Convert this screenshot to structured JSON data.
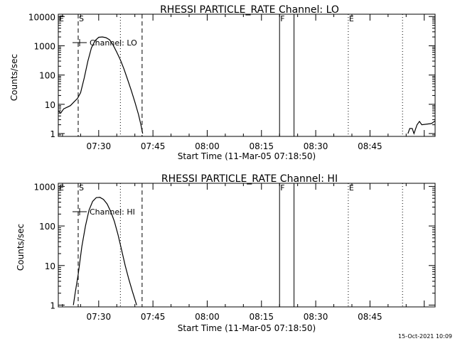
{
  "footer_timestamp": "15-Oct-2021 10:09",
  "chart_data": [
    {
      "type": "line",
      "title": "RHESSI PARTICLE_RATE Channel: LO",
      "xlabel": "Start Time (11-Mar-05 07:18:50)",
      "ylabel": "Counts/sec",
      "y_scale": "log",
      "ylim": [
        0.8,
        12000
      ],
      "xlim": [
        "07:18:50",
        "09:03:00"
      ],
      "x_ticks": [
        "07:30",
        "07:45",
        "08:00",
        "08:15",
        "08:30",
        "08:45"
      ],
      "y_ticks": [
        "1",
        "10",
        "100",
        "1000",
        "10000"
      ],
      "legend": {
        "label": "Channel: LO",
        "placement": "top-left"
      },
      "markers": [
        {
          "label": "E",
          "time": "07:18:50",
          "style": "dotted"
        },
        {
          "label": "S",
          "time": "07:24:20",
          "style": "dashed"
        },
        {
          "label": "",
          "time": "07:36:00",
          "style": "dotted"
        },
        {
          "label": "",
          "time": "07:42:00",
          "style": "dashed"
        },
        {
          "label": "F",
          "time": "08:20:00",
          "style": "solid"
        },
        {
          "label": "",
          "time": "08:24:00",
          "style": "solid"
        },
        {
          "label": "E",
          "time": "08:39:00",
          "style": "dotted"
        },
        {
          "label": "",
          "time": "08:54:00",
          "style": "dotted"
        }
      ],
      "series": [
        {
          "name": "Channel: LO",
          "segments": [
            [
              [
                "07:18:50",
                6
              ],
              [
                "07:19:30",
                5
              ],
              [
                "07:20:20",
                7
              ],
              [
                "07:21:20",
                8
              ],
              [
                "07:22:10",
                9
              ],
              [
                "07:23:10",
                12
              ],
              [
                "07:24:10",
                16
              ],
              [
                "07:25:00",
                25
              ],
              [
                "07:26:00",
                80
              ],
              [
                "07:27:00",
                300
              ],
              [
                "07:28:00",
                850
              ],
              [
                "07:29:00",
                1500
              ],
              [
                "07:30:00",
                1950
              ],
              [
                "07:31:00",
                2000
              ],
              [
                "07:32:00",
                1900
              ],
              [
                "07:33:00",
                1600
              ],
              [
                "07:34:00",
                1050
              ],
              [
                "07:35:00",
                600
              ],
              [
                "07:36:00",
                330
              ],
              [
                "07:37:00",
                160
              ],
              [
                "07:38:00",
                70
              ],
              [
                "07:39:00",
                30
              ],
              [
                "07:40:00",
                12
              ],
              [
                "07:41:00",
                4.5
              ],
              [
                "07:41:40",
                2
              ],
              [
                "07:42:10",
                1
              ]
            ],
            [
              [
                "08:55:30",
                1
              ],
              [
                "08:56:00",
                1.5
              ],
              [
                "08:56:40",
                1.5
              ],
              [
                "08:57:10",
                1
              ],
              [
                "08:58:00",
                2
              ],
              [
                "08:58:40",
                2.6
              ],
              [
                "08:59:20",
                2
              ],
              [
                "09:02:00",
                2.2
              ],
              [
                "09:03:00",
                2.7
              ]
            ]
          ]
        }
      ]
    },
    {
      "type": "line",
      "title": "RHESSI PARTICLE_RATE Channel: HI",
      "xlabel": "Start Time (11-Mar-05 07:18:50)",
      "ylabel": "Counts/sec",
      "y_scale": "log",
      "ylim": [
        0.9,
        1200
      ],
      "xlim": [
        "07:18:50",
        "09:03:00"
      ],
      "x_ticks": [
        "07:30",
        "07:45",
        "08:00",
        "08:15",
        "08:30",
        "08:45"
      ],
      "y_ticks": [
        "1",
        "10",
        "100",
        "1000"
      ],
      "legend": {
        "label": "Channel: HI",
        "placement": "top-left"
      },
      "markers": [
        {
          "label": "E",
          "time": "07:18:50",
          "style": "dotted"
        },
        {
          "label": "S",
          "time": "07:24:20",
          "style": "dashed"
        },
        {
          "label": "",
          "time": "07:36:00",
          "style": "dotted"
        },
        {
          "label": "",
          "time": "07:42:00",
          "style": "dashed"
        },
        {
          "label": "F",
          "time": "08:20:00",
          "style": "solid"
        },
        {
          "label": "",
          "time": "08:24:00",
          "style": "solid"
        },
        {
          "label": "E",
          "time": "08:39:00",
          "style": "dotted"
        },
        {
          "label": "",
          "time": "08:54:00",
          "style": "dotted"
        }
      ],
      "series": [
        {
          "name": "Channel: HI",
          "segments": [
            [
              [
                "07:23:00",
                1
              ],
              [
                "07:23:30",
                2
              ],
              [
                "07:24:20",
                6
              ],
              [
                "07:25:20",
                30
              ],
              [
                "07:26:20",
                100
              ],
              [
                "07:27:20",
                250
              ],
              [
                "07:28:20",
                420
              ],
              [
                "07:29:20",
                520
              ],
              [
                "07:30:20",
                530
              ],
              [
                "07:31:20",
                470
              ],
              [
                "07:32:20",
                360
              ],
              [
                "07:33:20",
                230
              ],
              [
                "07:34:20",
                130
              ],
              [
                "07:35:20",
                60
              ],
              [
                "07:36:20",
                25
              ],
              [
                "07:37:20",
                10
              ],
              [
                "07:38:20",
                4.5
              ],
              [
                "07:39:20",
                2.2
              ],
              [
                "07:40:00",
                1.4
              ],
              [
                "07:40:30",
                1
              ]
            ]
          ]
        }
      ]
    }
  ]
}
